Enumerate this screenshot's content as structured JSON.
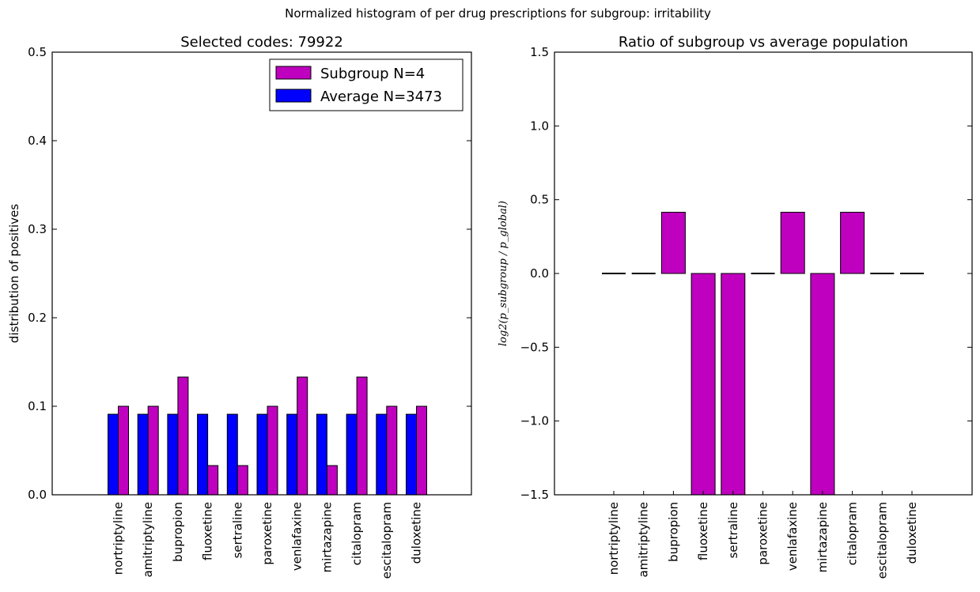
{
  "figure": {
    "title": "Normalized histogram of per drug prescriptions for subgroup: irritability"
  },
  "colors": {
    "subgroup": "#bf00bf",
    "average": "#0000ff"
  },
  "chart_data": [
    {
      "type": "bar",
      "title": "Selected codes: 79922",
      "xlabel": "",
      "ylabel": "distribution of positives",
      "ylim": [
        0,
        0.5
      ],
      "yticks": [
        "0.0",
        "0.1",
        "0.2",
        "0.3",
        "0.4",
        "0.5"
      ],
      "grid": false,
      "legend_position": "top-right",
      "categories": [
        "nortriptyline",
        "amitriptyline",
        "bupropion",
        "fluoxetine",
        "sertraline",
        "paroxetine",
        "venlafaxine",
        "mirtazapine",
        "citalopram",
        "escitalopram",
        "duloxetine"
      ],
      "series": [
        {
          "name": "Subgroup N=4",
          "values": [
            0.1,
            0.1,
            0.133,
            0.033,
            0.033,
            0.1,
            0.133,
            0.033,
            0.133,
            0.1,
            0.1
          ]
        },
        {
          "name": "Average N=3473",
          "values": [
            0.091,
            0.091,
            0.091,
            0.091,
            0.091,
            0.091,
            0.091,
            0.091,
            0.091,
            0.091,
            0.091
          ]
        }
      ]
    },
    {
      "type": "bar",
      "title": "Ratio of subgroup vs average population",
      "xlabel": "",
      "ylabel": "log2(p_subgroup / p_global)",
      "ylim": [
        -1.5,
        1.5
      ],
      "yticks": [
        "−1.5",
        "−1.0",
        "−0.5",
        "0.0",
        "0.5",
        "1.0",
        "1.5"
      ],
      "grid": false,
      "categories": [
        "nortriptyline",
        "amitriptyline",
        "bupropion",
        "fluoxetine",
        "sertraline",
        "paroxetine",
        "venlafaxine",
        "mirtazapine",
        "citalopram",
        "escitalopram",
        "duloxetine"
      ],
      "values": [
        0.0,
        0.0,
        0.415,
        -1.5,
        -1.5,
        0.0,
        0.415,
        -1.5,
        0.415,
        0.0,
        0.0
      ]
    }
  ]
}
